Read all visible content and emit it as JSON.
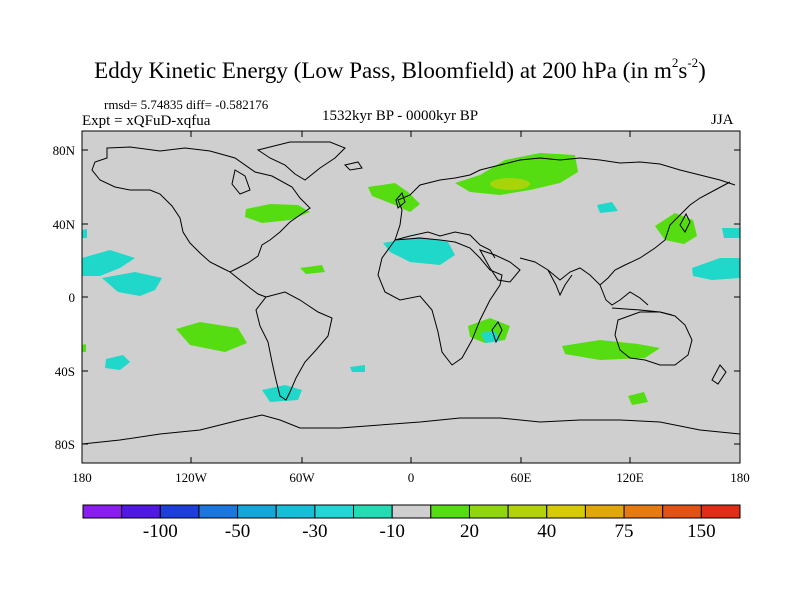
{
  "title": {
    "text": "Eddy Kinetic Energy (Low Pass, Bloomfield) at 200 hPa (in m",
    "sup1": "2",
    "mid": "s",
    "sup2": "-2",
    "tail": ")"
  },
  "stats": {
    "rmsd_label": "rmsd= 5.74835 diff= -0.582176"
  },
  "experiment": {
    "label": "Expt = xQFuD-xqfua"
  },
  "period": {
    "label": "1532kyr BP - 0000kyr BP"
  },
  "season": {
    "label": "JJA"
  },
  "axes": {
    "lat_ticks": [
      "80N",
      "40N",
      "0",
      "40S",
      "80S"
    ],
    "lon_ticks": [
      "180",
      "120W",
      "60W",
      "0",
      "60E",
      "120E",
      "180"
    ]
  },
  "colorbar": {
    "colors": [
      "#8C1DF0",
      "#5218E3",
      "#1C3FDB",
      "#1B76DE",
      "#13A6D9",
      "#15BFDA",
      "#22D6D8",
      "#23DCB3",
      "#CFCFCF",
      "#55DD11",
      "#8FD60F",
      "#B3D20A",
      "#D7CB08",
      "#E0A60A",
      "#E47A10",
      "#E35215",
      "#E12D16"
    ],
    "labels": [
      "-100",
      "-50",
      "-30",
      "-10",
      "20",
      "40",
      "75",
      "150"
    ]
  },
  "map_colors": {
    "ocean": "#CFCFCF",
    "cyan": "#1FD8C9",
    "green": "#55DD11",
    "yellowgreen": "#A8D40A",
    "coast": "#000000"
  }
}
